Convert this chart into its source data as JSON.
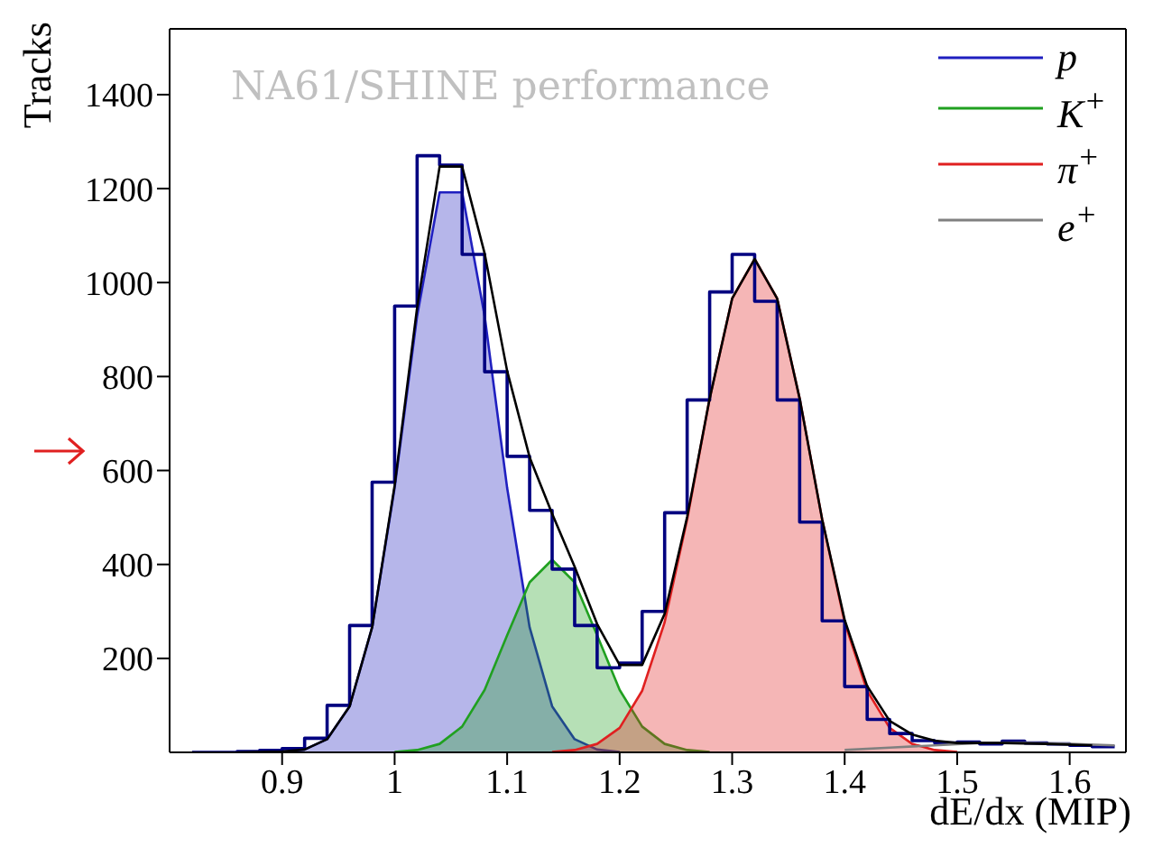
{
  "chart_data": {
    "type": "area",
    "xlabel": "dE/dx (MIP)",
    "ylabel": "Tracks",
    "annotations": [
      "NA61/SHINE performance"
    ],
    "xlim": [
      0.8,
      1.65
    ],
    "xticks": [
      0.9,
      1,
      1.1,
      1.2,
      1.3,
      1.4,
      1.5,
      1.6
    ],
    "ylim": [
      0,
      1540
    ],
    "yticks": [
      200,
      400,
      600,
      800,
      1000,
      1200,
      1400
    ],
    "legend": "top right",
    "marker": "none",
    "line_style": "solid",
    "series": [
      {
        "type": "step",
        "color": "#000080",
        "x": [
          0.82,
          0.84,
          0.86,
          0.88,
          0.9,
          0.92,
          0.94,
          0.96,
          0.98,
          1,
          1.02,
          1.04,
          1.06,
          1.08,
          1.1,
          1.12,
          1.14,
          1.16,
          1.18,
          1.2,
          1.22,
          1.24,
          1.26,
          1.28,
          1.3,
          1.32,
          1.34,
          1.36,
          1.38,
          1.4,
          1.42,
          1.44,
          1.46,
          1.48,
          1.5,
          1.52,
          1.54,
          1.56,
          1.58,
          1.6,
          1.62,
          1.64
        ],
        "values": [
          0,
          0,
          0,
          2,
          4,
          8,
          30,
          100,
          270,
          575,
          950,
          1270,
          1250,
          1060,
          810,
          630,
          515,
          390,
          270,
          180,
          190,
          300,
          510,
          750,
          980,
          1060,
          960,
          750,
          490,
          280,
          140,
          70,
          40,
          25,
          20,
          22,
          18,
          24,
          20,
          18,
          15,
          12
        ]
      },
      {
        "name": "p",
        "color": "#2020c0",
        "x": [
          0.9,
          0.92,
          0.94,
          0.96,
          0.98,
          1,
          1.02,
          1.04,
          1.06,
          1.08,
          1.1,
          1.12,
          1.14,
          1.16,
          1.18,
          1.2
        ],
        "values": [
          1,
          6,
          28,
          98,
          266,
          563,
          929,
          1192,
          1192,
          929,
          563,
          266,
          98,
          28,
          6,
          1
        ]
      },
      {
        "name": "K$^{+}$",
        "color": "#20a020",
        "x": [
          1,
          1.02,
          1.04,
          1.06,
          1.08,
          1.1,
          1.12,
          1.14,
          1.16,
          1.18,
          1.2,
          1.22,
          1.24,
          1.26,
          1.28
        ],
        "values": [
          1,
          5,
          18,
          55,
          133,
          249,
          362,
          410,
          362,
          249,
          133,
          55,
          18,
          5,
          1
        ]
      },
      {
        "name": "π$^{+}$",
        "color": "#e02020",
        "x": [
          1.14,
          1.16,
          1.18,
          1.2,
          1.22,
          1.24,
          1.26,
          1.28,
          1.3,
          1.32,
          1.34,
          1.36,
          1.38,
          1.4,
          1.42,
          1.44,
          1.46,
          1.48,
          1.5
        ],
        "values": [
          1,
          5,
          18,
          52,
          131,
          277,
          496,
          753,
          966,
          1050,
          966,
          753,
          496,
          277,
          131,
          52,
          18,
          5,
          1
        ]
      },
      {
        "type": "line",
        "name": "e$^{+}$",
        "color": "#808080",
        "x": [
          1.4,
          1.44,
          1.48,
          1.52,
          1.56,
          1.6,
          1.64
        ],
        "values": [
          5,
          10,
          15,
          20,
          20,
          18,
          15
        ]
      },
      {
        "type": "line",
        "color": "#000000",
        "x": [
          0.86,
          0.88,
          0.9,
          0.92,
          0.94,
          0.96,
          0.98,
          1,
          1.02,
          1.04,
          1.06,
          1.08,
          1.1,
          1.12,
          1.14,
          1.16,
          1.18,
          1.2,
          1.22,
          1.24,
          1.26,
          1.28,
          1.3,
          1.32,
          1.34,
          1.36,
          1.38,
          1.4,
          1.42,
          1.44,
          1.46,
          1.48,
          1.5,
          1.54,
          1.58,
          1.62
        ],
        "values": [
          0,
          1,
          2,
          6,
          28,
          98,
          266,
          568,
          947,
          1247,
          1247,
          1062,
          812,
          628,
          508,
          395,
          273,
          186,
          186,
          295,
          501,
          753,
          966,
          1050,
          966,
          753,
          496,
          282,
          141,
          67,
          38,
          25,
          20,
          20,
          18,
          15
        ]
      }
    ]
  }
}
